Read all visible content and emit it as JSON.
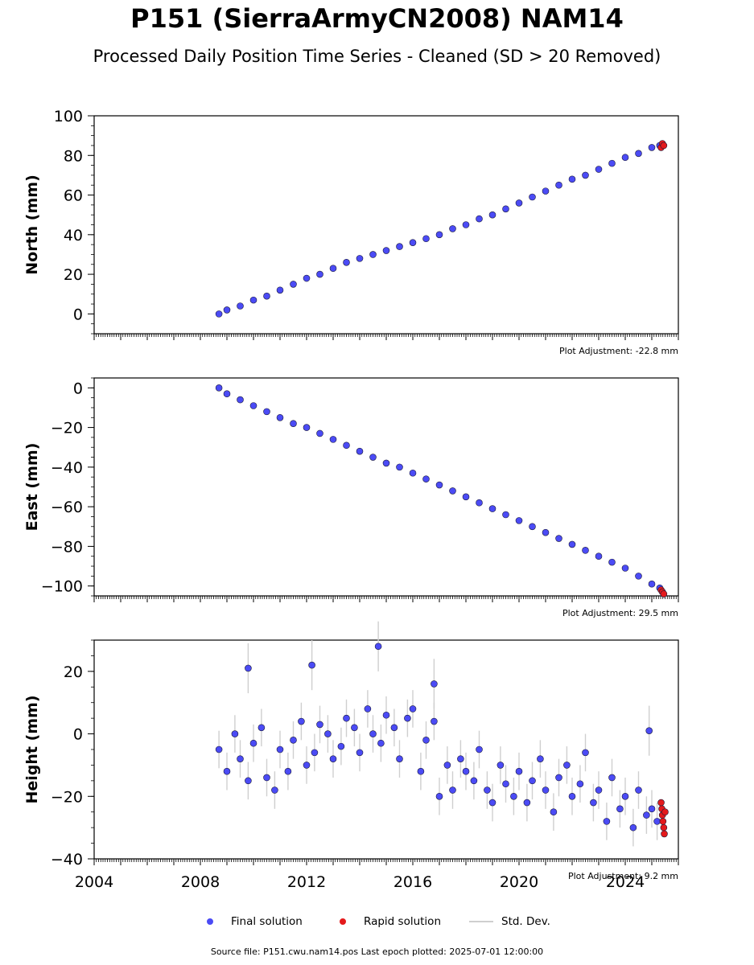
{
  "header": {
    "title": "P151 (SierraArmyCN2008) NAM14",
    "subtitle": "Processed Daily Position Time Series - Cleaned (SD > 20 Removed)"
  },
  "legend": {
    "final": "Final solution",
    "rapid": "Rapid solution",
    "std": "Std. Dev."
  },
  "footer": {
    "source": "Source file: P151.cwu.nam14.pos  Last epoch plotted: 2025-07-01 12:00:00"
  },
  "colors": {
    "final": "#4b4bf5",
    "rapid": "#e41a1c",
    "std": "#cfcfcf",
    "edge": "#1a1a3a"
  },
  "chart_data": [
    {
      "type": "scatter",
      "ylabel": "North (mm)",
      "adjustment": "Plot Adjustment: -22.8 mm",
      "xlim": [
        2004,
        2026
      ],
      "ylim": [
        -10,
        100
      ],
      "yticks": [
        0,
        20,
        40,
        60,
        80,
        100
      ],
      "ytick_labels": [
        "0",
        "20",
        "40",
        "60",
        "80",
        "100"
      ],
      "xticks": [
        2004,
        2008,
        2012,
        2016,
        2020,
        2024
      ],
      "xtick_labels": [],
      "series": [
        {
          "role": "final",
          "x": [
            2008.7,
            2009.0,
            2009.5,
            2010.0,
            2010.5,
            2011.0,
            2011.5,
            2012.0,
            2012.5,
            2013.0,
            2013.5,
            2014.0,
            2014.5,
            2015.0,
            2015.5,
            2016.0,
            2016.5,
            2017.0,
            2017.5,
            2018.0,
            2018.5,
            2019.0,
            2019.5,
            2020.0,
            2020.5,
            2021.0,
            2021.5,
            2022.0,
            2022.5,
            2023.0,
            2023.5,
            2024.0,
            2024.5,
            2025.0,
            2025.3
          ],
          "y": [
            0,
            2,
            4,
            7,
            9,
            12,
            15,
            18,
            20,
            23,
            26,
            28,
            30,
            32,
            34,
            36,
            38,
            40,
            43,
            45,
            48,
            50,
            53,
            56,
            59,
            62,
            65,
            68,
            70,
            73,
            76,
            79,
            81,
            84,
            85
          ]
        },
        {
          "role": "rapid",
          "x": [
            2025.35,
            2025.4,
            2025.45
          ],
          "y": [
            84,
            86,
            85
          ]
        }
      ]
    },
    {
      "type": "scatter",
      "ylabel": "East (mm)",
      "adjustment": "Plot Adjustment: 29.5 mm",
      "xlim": [
        2004,
        2026
      ],
      "ylim": [
        -105,
        5
      ],
      "yticks": [
        -100,
        -80,
        -60,
        -40,
        -20,
        0
      ],
      "ytick_labels": [
        "−100",
        "−80",
        "−60",
        "−40",
        "−20",
        "0"
      ],
      "xticks": [
        2004,
        2008,
        2012,
        2016,
        2020,
        2024
      ],
      "xtick_labels": [],
      "series": [
        {
          "role": "final",
          "x": [
            2008.7,
            2009.0,
            2009.5,
            2010.0,
            2010.5,
            2011.0,
            2011.5,
            2012.0,
            2012.5,
            2013.0,
            2013.5,
            2014.0,
            2014.5,
            2015.0,
            2015.5,
            2016.0,
            2016.5,
            2017.0,
            2017.5,
            2018.0,
            2018.5,
            2019.0,
            2019.5,
            2020.0,
            2020.5,
            2021.0,
            2021.5,
            2022.0,
            2022.5,
            2023.0,
            2023.5,
            2024.0,
            2024.5,
            2025.0,
            2025.3
          ],
          "y": [
            0,
            -3,
            -6,
            -9,
            -12,
            -15,
            -18,
            -20,
            -23,
            -26,
            -29,
            -32,
            -35,
            -38,
            -40,
            -43,
            -46,
            -49,
            -52,
            -55,
            -58,
            -61,
            -64,
            -67,
            -70,
            -73,
            -76,
            -79,
            -82,
            -85,
            -88,
            -91,
            -95,
            -99,
            -101
          ]
        },
        {
          "role": "rapid",
          "x": [
            2025.35,
            2025.4,
            2025.45
          ],
          "y": [
            -102,
            -103,
            -104
          ]
        }
      ]
    },
    {
      "type": "scatter",
      "ylabel": "Height (mm)",
      "adjustment": "Plot Adjustment: 9.2 mm",
      "xlim": [
        2004,
        2026
      ],
      "ylim": [
        -40,
        30
      ],
      "yticks": [
        -40,
        -20,
        0,
        20
      ],
      "ytick_labels": [
        "−40",
        "−20",
        "0",
        "20"
      ],
      "xticks": [
        2004,
        2008,
        2012,
        2016,
        2020,
        2024
      ],
      "xtick_labels": [
        "2004",
        "2008",
        "2012",
        "2016",
        "2020",
        "2024"
      ],
      "series": [
        {
          "role": "final",
          "x": [
            2008.7,
            2009.0,
            2009.3,
            2009.5,
            2009.8,
            2010.0,
            2010.3,
            2010.5,
            2010.8,
            2011.0,
            2011.3,
            2011.5,
            2011.8,
            2012.0,
            2012.3,
            2012.5,
            2012.8,
            2013.0,
            2013.3,
            2013.5,
            2013.8,
            2014.0,
            2014.3,
            2014.5,
            2014.8,
            2015.0,
            2015.3,
            2015.5,
            2015.8,
            2016.0,
            2016.3,
            2016.5,
            2016.8,
            2017.0,
            2017.3,
            2017.5,
            2017.8,
            2018.0,
            2018.3,
            2018.5,
            2018.8,
            2019.0,
            2019.3,
            2019.5,
            2019.8,
            2020.0,
            2020.3,
            2020.5,
            2020.8,
            2021.0,
            2021.3,
            2021.5,
            2021.8,
            2022.0,
            2022.3,
            2022.5,
            2022.8,
            2023.0,
            2023.3,
            2023.5,
            2023.8,
            2024.0,
            2024.3,
            2024.5,
            2024.8,
            2025.0,
            2025.2,
            2009.8,
            2012.2,
            2014.7,
            2016.8,
            2024.9
          ],
          "y": [
            -5,
            -12,
            0,
            -8,
            -15,
            -3,
            2,
            -14,
            -18,
            -5,
            -12,
            -2,
            4,
            -10,
            -6,
            3,
            0,
            -8,
            -4,
            5,
            2,
            -6,
            8,
            0,
            -3,
            6,
            2,
            -8,
            5,
            8,
            -12,
            -2,
            4,
            -20,
            -10,
            -18,
            -8,
            -12,
            -15,
            -5,
            -18,
            -22,
            -10,
            -16,
            -20,
            -12,
            -22,
            -15,
            -8,
            -18,
            -25,
            -14,
            -10,
            -20,
            -16,
            -6,
            -22,
            -18,
            -28,
            -14,
            -24,
            -20,
            -30,
            -18,
            -26,
            -24,
            -28,
            21,
            22,
            28,
            16,
            1
          ],
          "err": [
            6,
            6,
            6,
            6,
            6,
            6,
            6,
            6,
            6,
            6,
            6,
            6,
            6,
            6,
            6,
            6,
            6,
            6,
            6,
            6,
            6,
            6,
            6,
            6,
            6,
            6,
            6,
            6,
            6,
            6,
            6,
            6,
            6,
            6,
            6,
            6,
            6,
            6,
            6,
            6,
            6,
            6,
            6,
            6,
            6,
            6,
            6,
            6,
            6,
            6,
            6,
            6,
            6,
            6,
            6,
            6,
            6,
            6,
            6,
            6,
            6,
            6,
            6,
            6,
            6,
            6,
            6,
            8,
            8,
            8,
            8,
            8
          ]
        },
        {
          "role": "rapid",
          "x": [
            2025.35,
            2025.38,
            2025.4,
            2025.42,
            2025.45,
            2025.47,
            2025.5
          ],
          "y": [
            -22,
            -24,
            -26,
            -28,
            -30,
            -32,
            -25
          ]
        }
      ]
    }
  ]
}
